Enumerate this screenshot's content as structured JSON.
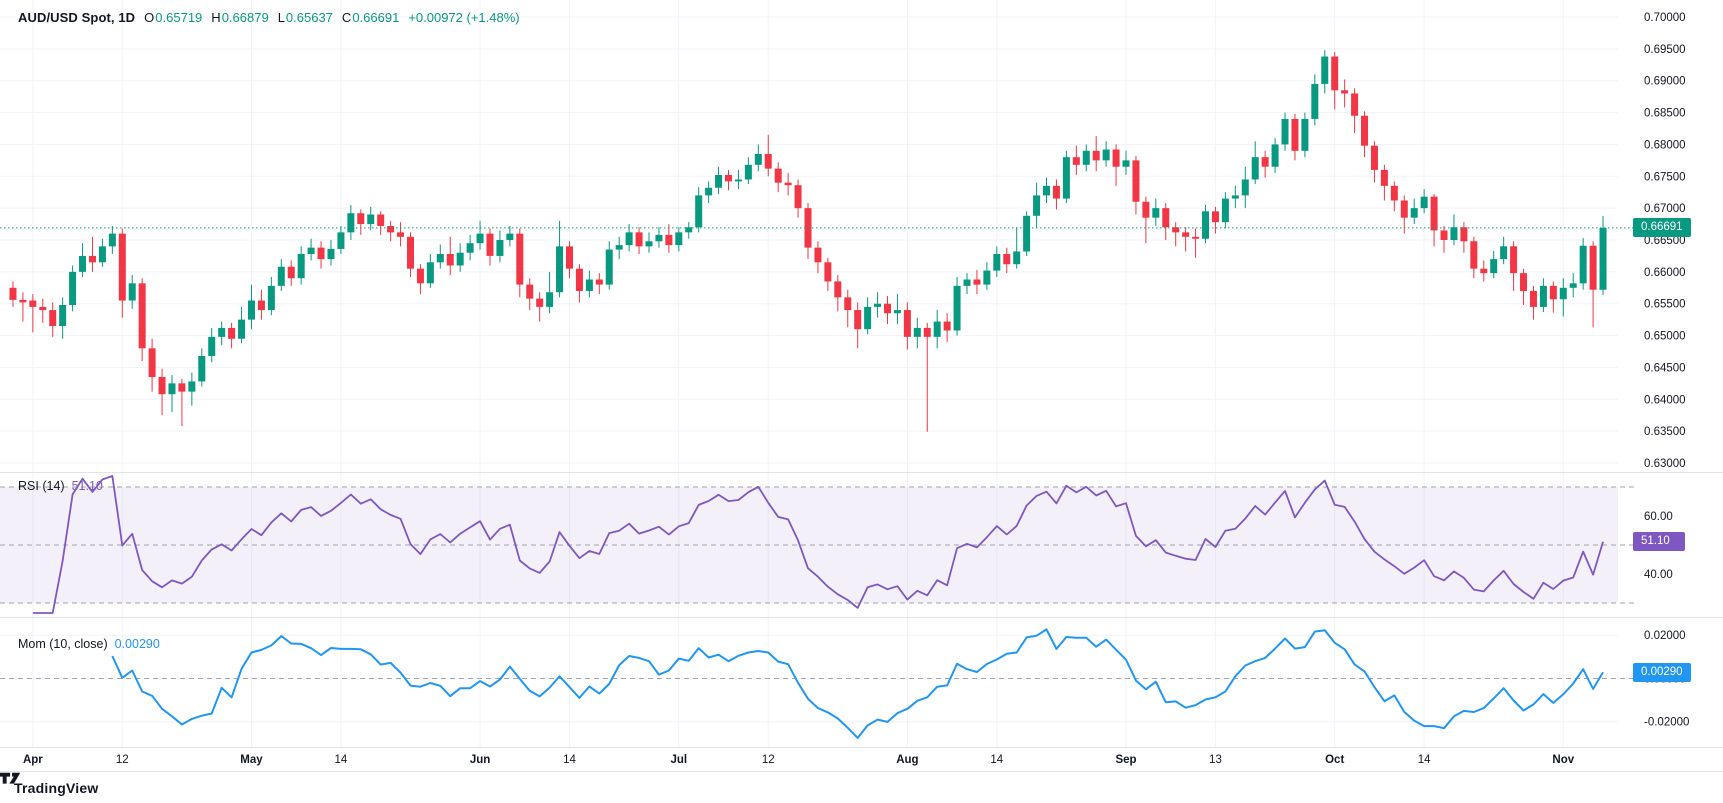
{
  "header": {
    "symbol": "AUD/USD Spot, 1D",
    "o_label": "O",
    "o": "0.65719",
    "h_label": "H",
    "h": "0.66879",
    "l_label": "L",
    "l": "0.65637",
    "c_label": "C",
    "c": "0.66691",
    "change": "+0.00972 (+1.48%)"
  },
  "price_axis": {
    "labels": [
      "0.70000",
      "0.69500",
      "0.69000",
      "0.68500",
      "0.68000",
      "0.67500",
      "0.67000",
      "0.66500",
      "0.66000",
      "0.65500",
      "0.65000",
      "0.64500",
      "0.64000",
      "0.63500",
      "0.63000"
    ],
    "max": 0.7,
    "min": 0.63,
    "step": 0.005,
    "last_price": "0.66691",
    "last_price_value": 0.66691
  },
  "time_axis": {
    "labels": [
      {
        "text": "Apr",
        "index": 2,
        "major": true
      },
      {
        "text": "12",
        "index": 11,
        "major": false
      },
      {
        "text": "May",
        "index": 24,
        "major": true
      },
      {
        "text": "14",
        "index": 33,
        "major": false
      },
      {
        "text": "Jun",
        "index": 47,
        "major": true
      },
      {
        "text": "14",
        "index": 56,
        "major": false
      },
      {
        "text": "Jul",
        "index": 67,
        "major": true
      },
      {
        "text": "12",
        "index": 76,
        "major": false
      },
      {
        "text": "Aug",
        "index": 90,
        "major": true
      },
      {
        "text": "14",
        "index": 99,
        "major": false
      },
      {
        "text": "Sep",
        "index": 112,
        "major": true
      },
      {
        "text": "13",
        "index": 121,
        "major": false
      },
      {
        "text": "Oct",
        "index": 133,
        "major": true
      },
      {
        "text": "14",
        "index": 142,
        "major": false
      },
      {
        "text": "Nov",
        "index": 156,
        "major": true
      }
    ]
  },
  "rsi_pane": {
    "title": "RSI",
    "params": "(14)",
    "value": "51.10",
    "value_num": 51.1,
    "levels": [
      70,
      50,
      30
    ],
    "axis_labels": [
      {
        "text": "60.00",
        "value": 60
      },
      {
        "text": "40.00",
        "value": 40
      }
    ]
  },
  "mom_pane": {
    "title": "Mom",
    "params": "(10, close)",
    "value": "0.00290",
    "value_num": 0.0029,
    "axis_labels": [
      {
        "text": "0.02000",
        "value": 0.02
      },
      {
        "text": "0.00000",
        "value": 0.0
      },
      {
        "text": "-0.02000",
        "value": -0.02
      }
    ]
  },
  "watermark": {
    "text": "TradingView"
  },
  "colors": {
    "up": "#089981",
    "down": "#f23645",
    "rsi_line": "#7e57c2",
    "mom_line": "#2196f3",
    "grid": "#f0f3fa",
    "divider": "#e0e3eb",
    "dashed": "#a0a3ab",
    "band_fill": "rgba(126,87,194,0.09)",
    "axis_text": "#131722"
  },
  "chart_data": {
    "type": "candlestick",
    "symbol": "AUD/USD Spot",
    "interval": "1D",
    "x_range": [
      "late Mar",
      "Nov 7"
    ],
    "price_range": [
      0.63,
      0.7
    ],
    "legend_ohlc": {
      "open": 0.65719,
      "high": 0.66879,
      "low": 0.65637,
      "close": 0.66691,
      "change": 0.00972,
      "change_pct": 1.48
    },
    "indicators": [
      {
        "type": "RSI",
        "length": 14,
        "last": 51.1,
        "levels": [
          70,
          50,
          30
        ]
      },
      {
        "type": "Momentum",
        "length": 10,
        "source": "close",
        "last": 0.0029
      }
    ],
    "candles": [
      [
        0.6575,
        0.6585,
        0.6545,
        0.6556
      ],
      [
        0.6556,
        0.6568,
        0.6522,
        0.6552
      ],
      [
        0.6555,
        0.6565,
        0.6505,
        0.6545
      ],
      [
        0.6545,
        0.6558,
        0.652,
        0.654
      ],
      [
        0.654,
        0.6552,
        0.6498,
        0.6515
      ],
      [
        0.6515,
        0.656,
        0.6495,
        0.6548
      ],
      [
        0.6548,
        0.661,
        0.6538,
        0.66
      ],
      [
        0.66,
        0.6645,
        0.6592,
        0.6625
      ],
      [
        0.6625,
        0.6655,
        0.66,
        0.6615
      ],
      [
        0.6615,
        0.6652,
        0.6608,
        0.664
      ],
      [
        0.664,
        0.6672,
        0.6628,
        0.666
      ],
      [
        0.666,
        0.6668,
        0.6528,
        0.6555
      ],
      [
        0.6555,
        0.6595,
        0.6542,
        0.6582
      ],
      [
        0.6582,
        0.659,
        0.646,
        0.648
      ],
      [
        0.648,
        0.6495,
        0.6412,
        0.6435
      ],
      [
        0.6435,
        0.6448,
        0.6375,
        0.6408
      ],
      [
        0.6408,
        0.6438,
        0.638,
        0.6425
      ],
      [
        0.6425,
        0.6432,
        0.6358,
        0.6412
      ],
      [
        0.6412,
        0.6442,
        0.639,
        0.6428
      ],
      [
        0.6428,
        0.648,
        0.642,
        0.6468
      ],
      [
        0.6468,
        0.6512,
        0.6458,
        0.6498
      ],
      [
        0.6498,
        0.6522,
        0.6485,
        0.6512
      ],
      [
        0.6512,
        0.652,
        0.648,
        0.6495
      ],
      [
        0.6495,
        0.6545,
        0.6488,
        0.6525
      ],
      [
        0.6525,
        0.658,
        0.651,
        0.6555
      ],
      [
        0.6555,
        0.6572,
        0.6525,
        0.654
      ],
      [
        0.654,
        0.6592,
        0.6532,
        0.6578
      ],
      [
        0.6578,
        0.662,
        0.657,
        0.6608
      ],
      [
        0.6608,
        0.6618,
        0.6578,
        0.659
      ],
      [
        0.659,
        0.664,
        0.658,
        0.6628
      ],
      [
        0.6628,
        0.6652,
        0.6618,
        0.6638
      ],
      [
        0.6638,
        0.6648,
        0.6605,
        0.662
      ],
      [
        0.662,
        0.665,
        0.661,
        0.6636
      ],
      [
        0.6636,
        0.6672,
        0.6628,
        0.6662
      ],
      [
        0.6662,
        0.6705,
        0.665,
        0.6692
      ],
      [
        0.6692,
        0.6698,
        0.6658,
        0.6675
      ],
      [
        0.6675,
        0.6702,
        0.6665,
        0.669
      ],
      [
        0.669,
        0.6695,
        0.6658,
        0.6672
      ],
      [
        0.6672,
        0.668,
        0.6648,
        0.6662
      ],
      [
        0.6662,
        0.6678,
        0.664,
        0.6655
      ],
      [
        0.6655,
        0.6662,
        0.6592,
        0.6605
      ],
      [
        0.6605,
        0.6612,
        0.6565,
        0.6582
      ],
      [
        0.6582,
        0.6628,
        0.6575,
        0.6615
      ],
      [
        0.6615,
        0.6643,
        0.6605,
        0.6628
      ],
      [
        0.6628,
        0.6655,
        0.6595,
        0.661
      ],
      [
        0.661,
        0.6645,
        0.66,
        0.663
      ],
      [
        0.663,
        0.6658,
        0.6618,
        0.6645
      ],
      [
        0.6645,
        0.668,
        0.6635,
        0.666
      ],
      [
        0.666,
        0.6668,
        0.661,
        0.6625
      ],
      [
        0.6625,
        0.6665,
        0.6615,
        0.665
      ],
      [
        0.665,
        0.6672,
        0.664,
        0.666
      ],
      [
        0.666,
        0.6668,
        0.656,
        0.658
      ],
      [
        0.658,
        0.659,
        0.654,
        0.6558
      ],
      [
        0.6558,
        0.6568,
        0.6522,
        0.6545
      ],
      [
        0.6545,
        0.66,
        0.6535,
        0.6568
      ],
      [
        0.6568,
        0.668,
        0.656,
        0.664
      ],
      [
        0.664,
        0.6648,
        0.659,
        0.6605
      ],
      [
        0.6605,
        0.6612,
        0.6552,
        0.657
      ],
      [
        0.657,
        0.6602,
        0.656,
        0.6588
      ],
      [
        0.6588,
        0.6598,
        0.6565,
        0.658
      ],
      [
        0.658,
        0.6648,
        0.6572,
        0.6635
      ],
      [
        0.6635,
        0.6655,
        0.662,
        0.6642
      ],
      [
        0.6642,
        0.6675,
        0.6632,
        0.6662
      ],
      [
        0.6662,
        0.667,
        0.6628,
        0.664
      ],
      [
        0.664,
        0.6662,
        0.663,
        0.6648
      ],
      [
        0.6648,
        0.667,
        0.6638,
        0.6658
      ],
      [
        0.6658,
        0.6675,
        0.663,
        0.6642
      ],
      [
        0.6642,
        0.667,
        0.6632,
        0.6662
      ],
      [
        0.6662,
        0.6678,
        0.6652,
        0.667
      ],
      [
        0.667,
        0.6733,
        0.6662,
        0.672
      ],
      [
        0.672,
        0.6742,
        0.6708,
        0.6732
      ],
      [
        0.6732,
        0.6765,
        0.6722,
        0.6752
      ],
      [
        0.6752,
        0.676,
        0.6728,
        0.6742
      ],
      [
        0.6742,
        0.676,
        0.673,
        0.6745
      ],
      [
        0.6745,
        0.678,
        0.6738,
        0.6768
      ],
      [
        0.6768,
        0.68,
        0.6758,
        0.6785
      ],
      [
        0.6785,
        0.6815,
        0.675,
        0.6762
      ],
      [
        0.6762,
        0.6772,
        0.6725,
        0.674
      ],
      [
        0.674,
        0.6755,
        0.672,
        0.6736
      ],
      [
        0.6736,
        0.6745,
        0.6685,
        0.67
      ],
      [
        0.67,
        0.6708,
        0.662,
        0.6638
      ],
      [
        0.6638,
        0.6648,
        0.6598,
        0.6615
      ],
      [
        0.6615,
        0.6622,
        0.657,
        0.6585
      ],
      [
        0.6585,
        0.6595,
        0.6538,
        0.656
      ],
      [
        0.656,
        0.6572,
        0.6513,
        0.654
      ],
      [
        0.654,
        0.6552,
        0.648,
        0.651
      ],
      [
        0.651,
        0.656,
        0.6502,
        0.6545
      ],
      [
        0.6545,
        0.6568,
        0.6528,
        0.655
      ],
      [
        0.655,
        0.6562,
        0.6518,
        0.6535
      ],
      [
        0.6535,
        0.6565,
        0.6518,
        0.654
      ],
      [
        0.654,
        0.6552,
        0.6478,
        0.6498
      ],
      [
        0.6498,
        0.6528,
        0.648,
        0.6512
      ],
      [
        0.6512,
        0.652,
        0.6349,
        0.6498
      ],
      [
        0.6498,
        0.654,
        0.648,
        0.6522
      ],
      [
        0.6522,
        0.6535,
        0.649,
        0.6508
      ],
      [
        0.6508,
        0.6592,
        0.65,
        0.6578
      ],
      [
        0.6578,
        0.6598,
        0.6565,
        0.6588
      ],
      [
        0.6588,
        0.6603,
        0.6565,
        0.658
      ],
      [
        0.658,
        0.6615,
        0.6572,
        0.6602
      ],
      [
        0.6602,
        0.664,
        0.6592,
        0.6628
      ],
      [
        0.6628,
        0.6638,
        0.6598,
        0.6612
      ],
      [
        0.6612,
        0.667,
        0.6605,
        0.6632
      ],
      [
        0.6632,
        0.6695,
        0.6625,
        0.6688
      ],
      [
        0.6688,
        0.674,
        0.667,
        0.672
      ],
      [
        0.672,
        0.6748,
        0.6708,
        0.6735
      ],
      [
        0.6735,
        0.6745,
        0.6698,
        0.6715
      ],
      [
        0.6715,
        0.679,
        0.6708,
        0.678
      ],
      [
        0.678,
        0.6798,
        0.6752,
        0.6768
      ],
      [
        0.6768,
        0.68,
        0.6758,
        0.679
      ],
      [
        0.679,
        0.6813,
        0.6758,
        0.6775
      ],
      [
        0.6775,
        0.6805,
        0.6765,
        0.6792
      ],
      [
        0.6792,
        0.68,
        0.6735,
        0.6765
      ],
      [
        0.6765,
        0.679,
        0.6752,
        0.6775
      ],
      [
        0.6775,
        0.6782,
        0.669,
        0.671
      ],
      [
        0.671,
        0.6718,
        0.6645,
        0.6685
      ],
      [
        0.6685,
        0.6715,
        0.6672,
        0.67
      ],
      [
        0.67,
        0.6708,
        0.665,
        0.667
      ],
      [
        0.667,
        0.6678,
        0.664,
        0.6662
      ],
      [
        0.6662,
        0.667,
        0.6632,
        0.6655
      ],
      [
        0.6655,
        0.6668,
        0.6622,
        0.6652
      ],
      [
        0.6652,
        0.6705,
        0.6645,
        0.6695
      ],
      [
        0.6695,
        0.6702,
        0.666,
        0.6678
      ],
      [
        0.6678,
        0.6725,
        0.6668,
        0.6715
      ],
      [
        0.6715,
        0.6735,
        0.67,
        0.672
      ],
      [
        0.672,
        0.6765,
        0.67,
        0.6745
      ],
      [
        0.6745,
        0.6805,
        0.6738,
        0.678
      ],
      [
        0.678,
        0.679,
        0.6748,
        0.6765
      ],
      [
        0.6765,
        0.681,
        0.6755,
        0.68
      ],
      [
        0.68,
        0.685,
        0.679,
        0.684
      ],
      [
        0.684,
        0.6848,
        0.6775,
        0.679
      ],
      [
        0.679,
        0.685,
        0.678,
        0.684
      ],
      [
        0.684,
        0.691,
        0.683,
        0.6895
      ],
      [
        0.6895,
        0.6948,
        0.688,
        0.6938
      ],
      [
        0.6938,
        0.6945,
        0.6855,
        0.6885
      ],
      [
        0.6885,
        0.6902,
        0.6858,
        0.688
      ],
      [
        0.688,
        0.6888,
        0.6818,
        0.6845
      ],
      [
        0.6845,
        0.6852,
        0.678,
        0.6798
      ],
      [
        0.6798,
        0.6805,
        0.674,
        0.676
      ],
      [
        0.676,
        0.6768,
        0.6712,
        0.6735
      ],
      [
        0.6735,
        0.6742,
        0.6695,
        0.6712
      ],
      [
        0.6712,
        0.672,
        0.666,
        0.6685
      ],
      [
        0.6685,
        0.6715,
        0.6675,
        0.67
      ],
      [
        0.67,
        0.673,
        0.6692,
        0.6718
      ],
      [
        0.6718,
        0.6722,
        0.664,
        0.6665
      ],
      [
        0.6665,
        0.6672,
        0.663,
        0.665
      ],
      [
        0.665,
        0.669,
        0.6642,
        0.667
      ],
      [
        0.667,
        0.6678,
        0.663,
        0.6648
      ],
      [
        0.6648,
        0.6655,
        0.659,
        0.6605
      ],
      [
        0.6605,
        0.6618,
        0.6585,
        0.6598
      ],
      [
        0.6598,
        0.6633,
        0.659,
        0.662
      ],
      [
        0.662,
        0.6655,
        0.6612,
        0.66401
      ],
      [
        0.66401,
        0.6648,
        0.657,
        0.6598
      ],
      [
        0.6598,
        0.6605,
        0.6548,
        0.657
      ],
      [
        0.657,
        0.6578,
        0.6525,
        0.6545
      ],
      [
        0.6545,
        0.659,
        0.6537,
        0.6578
      ],
      [
        0.6578,
        0.6585,
        0.6536,
        0.6557
      ],
      [
        0.6557,
        0.659,
        0.653,
        0.6575
      ],
      [
        0.6575,
        0.6598,
        0.656,
        0.6582
      ],
      [
        0.6582,
        0.6653,
        0.6572,
        0.6641
      ],
      [
        0.6641,
        0.6648,
        0.6513,
        0.6572
      ],
      [
        0.65719,
        0.66879,
        0.65637,
        0.66691
      ]
    ]
  }
}
